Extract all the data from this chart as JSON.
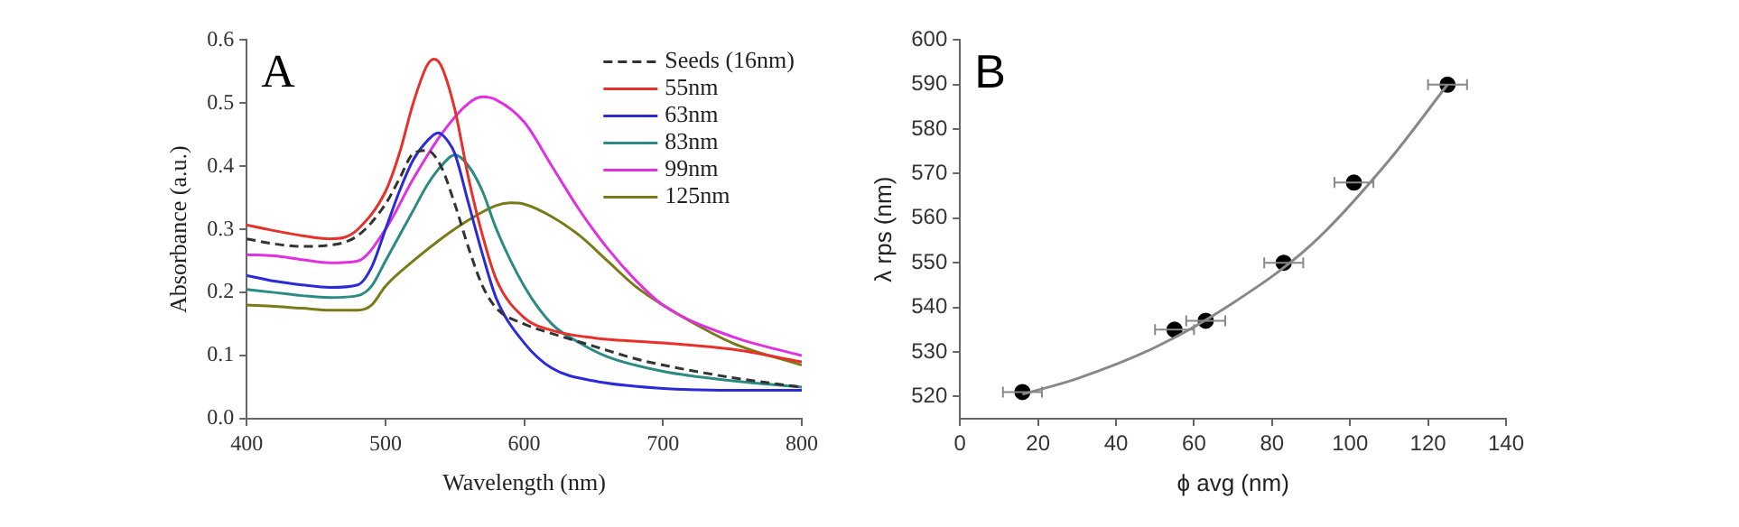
{
  "chart_data": [
    {
      "type": "line",
      "annotations": [
        "A"
      ],
      "xlabel": "Wavelength (nm)",
      "ylabel": "Absorbance (a.u.)",
      "xlim": [
        400,
        800
      ],
      "xticks": [
        400,
        500,
        600,
        700,
        800
      ],
      "ylim": [
        0,
        0.6
      ],
      "yticks": [
        {
          "value": 0,
          "label": "0.0"
        },
        0.1,
        0.2,
        0.3,
        0.4,
        0.5,
        0.6
      ],
      "grid": false,
      "legend": "top right",
      "marker": "none",
      "series": [
        {
          "name": "Seeds (16nm)",
          "color": "#333333",
          "line_style": "dashed",
          "x": [
            400,
            420,
            440,
            460,
            480,
            500,
            510,
            520,
            530,
            540,
            550,
            560,
            570,
            580,
            600,
            620,
            650,
            680,
            700,
            750,
            800
          ],
          "values": [
            0.285,
            0.277,
            0.273,
            0.275,
            0.29,
            0.34,
            0.38,
            0.42,
            0.425,
            0.4,
            0.34,
            0.27,
            0.21,
            0.175,
            0.15,
            0.135,
            0.115,
            0.095,
            0.085,
            0.065,
            0.05
          ]
        },
        {
          "name": "55nm",
          "color": "#e8302a",
          "x": [
            400,
            420,
            440,
            460,
            470,
            480,
            500,
            510,
            520,
            530,
            535,
            540,
            550,
            560,
            570,
            580,
            600,
            620,
            650,
            700,
            750,
            800
          ],
          "values": [
            0.307,
            0.298,
            0.29,
            0.285,
            0.287,
            0.3,
            0.36,
            0.42,
            0.5,
            0.56,
            0.57,
            0.56,
            0.49,
            0.38,
            0.29,
            0.22,
            0.16,
            0.14,
            0.128,
            0.12,
            0.11,
            0.09
          ]
        },
        {
          "name": "63nm",
          "color": "#2a2ad8",
          "x": [
            400,
            420,
            440,
            460,
            480,
            490,
            500,
            510,
            520,
            530,
            538,
            545,
            550,
            560,
            570,
            580,
            600,
            620,
            650,
            700,
            750,
            800
          ],
          "values": [
            0.227,
            0.218,
            0.212,
            0.208,
            0.212,
            0.24,
            0.3,
            0.36,
            0.41,
            0.44,
            0.453,
            0.44,
            0.42,
            0.34,
            0.26,
            0.19,
            0.12,
            0.08,
            0.06,
            0.048,
            0.045,
            0.045
          ]
        },
        {
          "name": "83nm",
          "color": "#2a8a84",
          "x": [
            400,
            420,
            440,
            460,
            480,
            490,
            500,
            520,
            530,
            540,
            550,
            560,
            570,
            580,
            600,
            620,
            640,
            660,
            700,
            750,
            800
          ],
          "values": [
            0.205,
            0.2,
            0.195,
            0.192,
            0.195,
            0.21,
            0.25,
            0.33,
            0.37,
            0.4,
            0.418,
            0.4,
            0.36,
            0.3,
            0.21,
            0.15,
            0.12,
            0.098,
            0.075,
            0.06,
            0.05
          ]
        },
        {
          "name": "99nm",
          "color": "#e030e0",
          "x": [
            400,
            420,
            440,
            460,
            480,
            500,
            520,
            540,
            560,
            570,
            580,
            600,
            620,
            640,
            660,
            680,
            700,
            750,
            800
          ],
          "values": [
            0.26,
            0.258,
            0.252,
            0.247,
            0.25,
            0.3,
            0.38,
            0.45,
            0.5,
            0.51,
            0.505,
            0.47,
            0.4,
            0.33,
            0.27,
            0.22,
            0.18,
            0.13,
            0.1
          ]
        },
        {
          "name": "125nm",
          "color": "#7a7a18",
          "x": [
            400,
            420,
            440,
            460,
            480,
            490,
            500,
            520,
            540,
            560,
            580,
            590,
            600,
            620,
            640,
            660,
            680,
            700,
            750,
            800
          ],
          "values": [
            0.18,
            0.178,
            0.175,
            0.172,
            0.172,
            0.18,
            0.21,
            0.25,
            0.285,
            0.315,
            0.338,
            0.342,
            0.34,
            0.32,
            0.29,
            0.25,
            0.21,
            0.18,
            0.12,
            0.085
          ]
        }
      ]
    },
    {
      "type": "scatter",
      "annotations": [
        "B"
      ],
      "xlabel": "ϕ avg (nm)",
      "ylabel": "λ rps (nm)",
      "xlim": [
        0,
        140
      ],
      "xticks": [
        0,
        20,
        40,
        60,
        80,
        100,
        120,
        140
      ],
      "ylim": [
        515,
        600
      ],
      "yticks": [
        520,
        530,
        540,
        550,
        560,
        570,
        580,
        590,
        600
      ],
      "grid": false,
      "legend": false,
      "series": [
        {
          "type": "line",
          "color": "#888888",
          "marker": "none",
          "x": [
            16,
            30,
            50,
            70,
            90,
            110,
            125
          ],
          "values": [
            520.5,
            524,
            531,
            541,
            554,
            573,
            590
          ]
        },
        {
          "color": "#000000",
          "marker": "circle",
          "x": [
            16,
            55,
            63,
            83,
            101,
            125
          ],
          "values": [
            521,
            535,
            537,
            550,
            568,
            590
          ],
          "xerrors": [
            5,
            5,
            5,
            5,
            5,
            5
          ]
        }
      ]
    }
  ]
}
